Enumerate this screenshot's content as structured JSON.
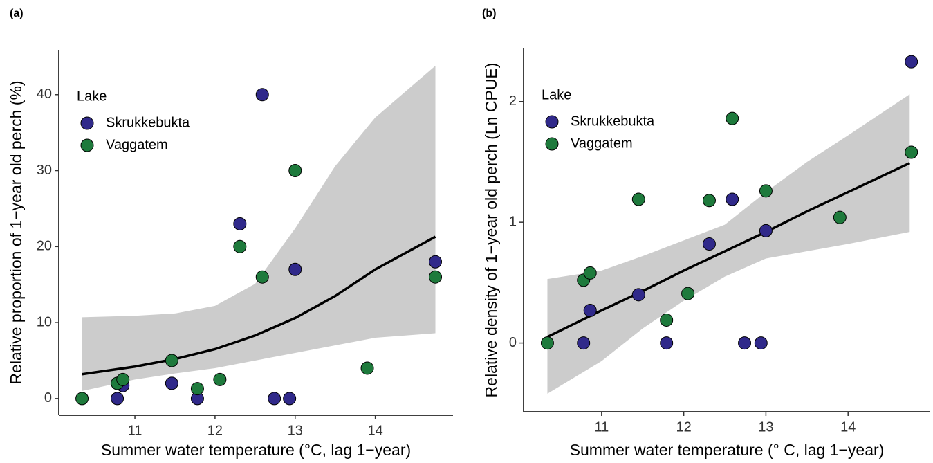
{
  "chart_data": [
    {
      "type": "scatter",
      "panel_label": "(a)",
      "xlabel": "Summer water temperature (°C, lag 1−year)",
      "ylabel": "Relative proportion of 1−year old perch (%)",
      "xlim": [
        10.05,
        14.97
      ],
      "ylim": [
        -2.2,
        45.9
      ],
      "xticks": [
        11,
        12,
        13,
        14
      ],
      "yticks": [
        0,
        10,
        20,
        30,
        40
      ],
      "legend_title": "Lake",
      "legend_position": "top-left",
      "series": [
        {
          "name": "Skrukkebukta",
          "color": "#30298a",
          "x": [
            10.78,
            10.85,
            11.46,
            11.78,
            12.31,
            12.59,
            12.74,
            12.93,
            13.0,
            14.75
          ],
          "y": [
            0,
            1.7,
            2,
            0,
            23,
            40,
            0,
            0,
            17,
            18
          ]
        },
        {
          "name": "Vaggatem",
          "color": "#1e7a3c",
          "x": [
            10.34,
            10.78,
            10.85,
            11.46,
            11.78,
            12.06,
            12.31,
            12.59,
            13.0,
            13.9,
            14.75
          ],
          "y": [
            0,
            2,
            2.5,
            5,
            1.3,
            2.5,
            20,
            16,
            30,
            4,
            16
          ]
        }
      ],
      "fit": {
        "color": "#000000",
        "band_color": "#cccccc",
        "x": [
          10.34,
          11,
          11.5,
          12,
          12.5,
          13,
          13.5,
          14,
          14.75
        ],
        "y": [
          3.2,
          4.2,
          5.2,
          6.5,
          8.3,
          10.6,
          13.5,
          17,
          21.3
        ],
        "lower": [
          1.0,
          2.5,
          3.3,
          4.0,
          5.0,
          6.0,
          7.0,
          8.0,
          8.6
        ],
        "upper": [
          10.7,
          10.9,
          11.2,
          12.2,
          15.1,
          22.4,
          30.6,
          37,
          43.8
        ]
      }
    },
    {
      "type": "scatter",
      "panel_label": "(b)",
      "xlabel": "Summer water temperature (° C, lag 1−year)",
      "ylabel": "Relative density of 1−year old perch (Ln CPUE)",
      "xlim": [
        10.05,
        15.0
      ],
      "ylim": [
        -0.57,
        2.44
      ],
      "xticks": [
        11,
        12,
        13,
        14
      ],
      "yticks": [
        0,
        1,
        2
      ],
      "legend_title": "Lake",
      "legend_position": "top-left",
      "series": [
        {
          "name": "Skrukkebukta",
          "color": "#30298a",
          "x": [
            10.78,
            10.86,
            11.45,
            11.79,
            12.31,
            12.59,
            12.74,
            12.94,
            13.0,
            14.77
          ],
          "y": [
            0,
            0.27,
            0.4,
            0,
            0.82,
            1.19,
            0,
            0,
            0.93,
            2.33
          ]
        },
        {
          "name": "Vaggatem",
          "color": "#1e7a3c",
          "x": [
            10.34,
            10.78,
            10.86,
            11.45,
            11.79,
            12.05,
            12.31,
            12.59,
            13.0,
            13.9,
            14.77
          ],
          "y": [
            0,
            0.52,
            0.58,
            1.19,
            0.19,
            0.41,
            1.18,
            1.86,
            1.26,
            1.04,
            1.58
          ]
        }
      ],
      "fit": {
        "color": "#000000",
        "band_color": "#cccccc",
        "x": [
          10.34,
          11,
          11.5,
          12,
          12.5,
          13,
          13.5,
          14,
          14.75
        ],
        "y": [
          0.05,
          0.27,
          0.43,
          0.6,
          0.76,
          0.92,
          1.09,
          1.25,
          1.49
        ],
        "lower": [
          -0.42,
          -0.15,
          0.12,
          0.35,
          0.55,
          0.7,
          0.76,
          0.82,
          0.92
        ],
        "upper": [
          0.53,
          0.6,
          0.72,
          0.85,
          0.98,
          1.25,
          1.5,
          1.72,
          2.06
        ]
      }
    }
  ]
}
